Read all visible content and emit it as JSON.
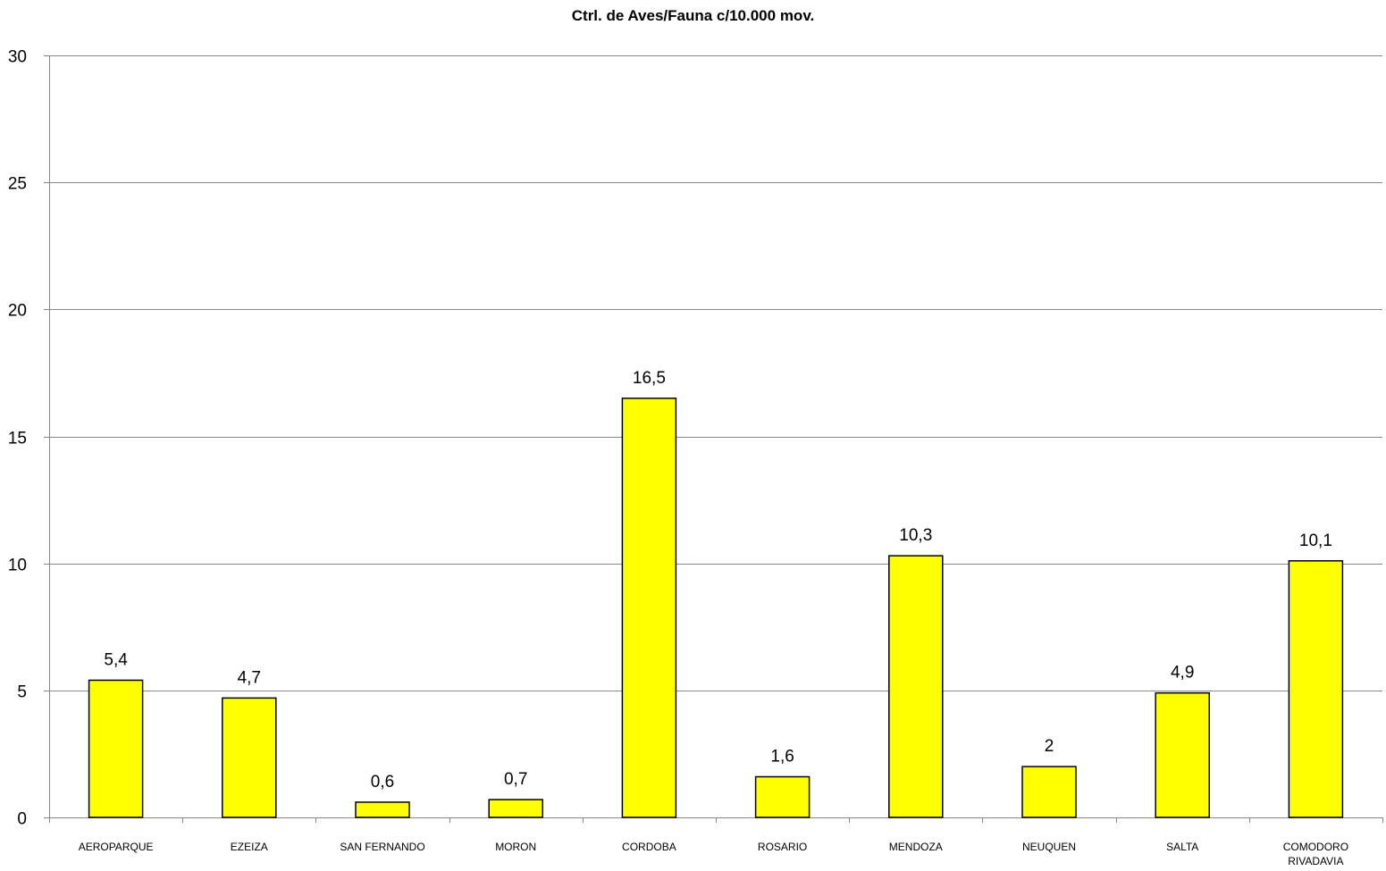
{
  "chart_data": {
    "type": "bar",
    "title": "Ctrl. de Aves/Fauna c/10.000 mov.",
    "xlabel": "",
    "ylabel": "",
    "categories": [
      [
        "AEROPARQUE"
      ],
      [
        "EZEIZA"
      ],
      [
        "SAN FERNANDO"
      ],
      [
        "MORON"
      ],
      [
        "CORDOBA"
      ],
      [
        "ROSARIO"
      ],
      [
        "MENDOZA"
      ],
      [
        "NEUQUEN"
      ],
      [
        "SALTA"
      ],
      [
        "COMODORO",
        "RIVADAVIA"
      ]
    ],
    "values": [
      5.4,
      4.7,
      0.6,
      0.7,
      16.5,
      1.6,
      10.3,
      2,
      4.9,
      10.1
    ],
    "value_labels": [
      "5,4",
      "4,7",
      "0,6",
      "0,7",
      "16,5",
      "1,6",
      "10,3",
      "2",
      "4,9",
      "10,1"
    ],
    "ylim": [
      0,
      30
    ],
    "yticks": [
      0,
      5,
      10,
      15,
      20,
      25,
      30
    ],
    "grid": true,
    "legend": "none",
    "colors": {
      "bar_fill": "#FFFF00",
      "bar_stroke": "#000000",
      "grid": "#888888",
      "axis": "#888888"
    }
  }
}
